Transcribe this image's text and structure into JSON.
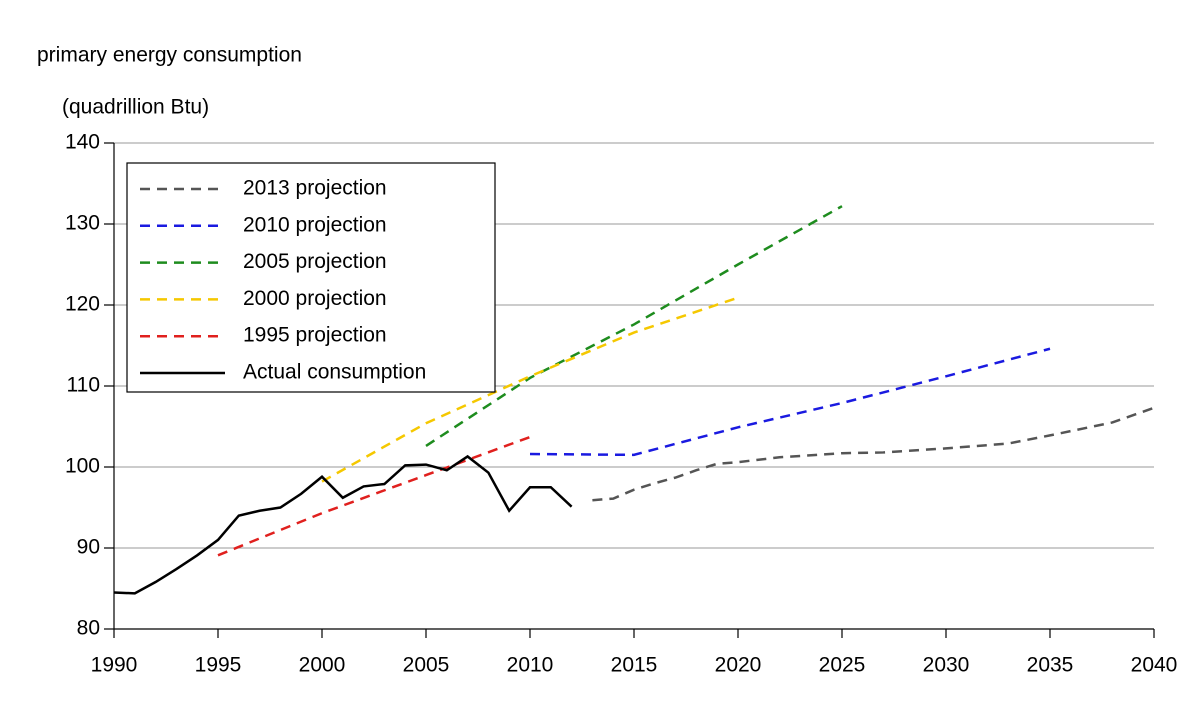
{
  "chart_data": {
    "type": "line",
    "y_label_line1": "primary energy consumption",
    "y_label_line2": "(quadrillion Btu)",
    "xlim": [
      1990,
      2040
    ],
    "xticks": [
      1990,
      1995,
      2000,
      2005,
      2010,
      2015,
      2020,
      2025,
      2030,
      2035,
      2040
    ],
    "ylim": [
      80,
      140
    ],
    "yticks": [
      80,
      90,
      100,
      110,
      120,
      130,
      140
    ],
    "grid": true,
    "legend": "upper left",
    "series": [
      {
        "name": "2013 projection",
        "color": "#555555",
        "style": "dashed",
        "x": [
          2013,
          2014,
          2015,
          2016,
          2017,
          2018,
          2019,
          2020,
          2022,
          2025,
          2027,
          2030,
          2033,
          2035,
          2038,
          2040
        ],
        "values": [
          95.9,
          96.1,
          97.2,
          98.0,
          98.7,
          99.6,
          100.4,
          100.6,
          101.2,
          101.7,
          101.8,
          102.3,
          102.9,
          103.9,
          105.5,
          107.3
        ]
      },
      {
        "name": "2010 projection",
        "color": "#1a1ae0",
        "style": "dashed",
        "x": [
          2010,
          2015,
          2020,
          2025,
          2030,
          2035
        ],
        "values": [
          101.6,
          101.5,
          104.9,
          107.9,
          111.2,
          114.6
        ]
      },
      {
        "name": "2005 projection",
        "color": "#1e8c1e",
        "style": "dashed",
        "x": [
          2005,
          2010,
          2015,
          2020,
          2025
        ],
        "values": [
          102.6,
          111.0,
          117.6,
          125.0,
          132.2
        ]
      },
      {
        "name": "2000 projection",
        "color": "#f5c800",
        "style": "dashed",
        "x": [
          2000,
          2005,
          2010,
          2015,
          2020
        ],
        "values": [
          98.2,
          105.4,
          111.2,
          116.6,
          120.9
        ]
      },
      {
        "name": "1995 projection",
        "color": "#e0201e",
        "style": "dashed",
        "x": [
          1995,
          2000,
          2005,
          2010
        ],
        "values": [
          89.1,
          94.3,
          99.0,
          103.7
        ]
      },
      {
        "name": "Actual consumption",
        "color": "#000000",
        "style": "solid",
        "x": [
          1990,
          1991,
          1992,
          1993,
          1994,
          1995,
          1996,
          1997,
          1998,
          1999,
          2000,
          2001,
          2002,
          2003,
          2004,
          2005,
          2006,
          2007,
          2008,
          2009,
          2010,
          2011,
          2012
        ],
        "values": [
          84.5,
          84.4,
          85.8,
          87.4,
          89.1,
          91.0,
          94.0,
          94.6,
          95.0,
          96.7,
          98.8,
          96.2,
          97.6,
          97.9,
          100.2,
          100.3,
          99.6,
          101.3,
          99.3,
          94.6,
          97.5,
          97.5,
          95.1
        ]
      }
    ]
  }
}
